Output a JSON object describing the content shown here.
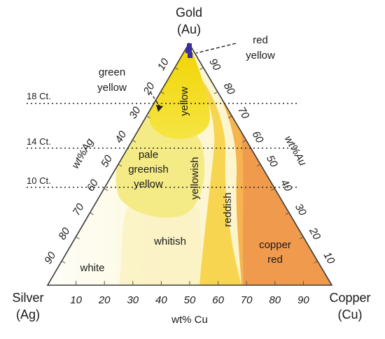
{
  "vertices": {
    "top": [
      "Gold",
      "(Au)"
    ],
    "left": [
      "Silver",
      "(Ag)"
    ],
    "right": [
      "Copper",
      "(Cu)"
    ]
  },
  "axes": {
    "ag_title": "wt%Ag",
    "au_title": "wt%Au",
    "cu_title": "wt% Cu",
    "ag_ticks": [
      10,
      20,
      30,
      40,
      50,
      60,
      70,
      80,
      90
    ],
    "au_ticks": [
      90,
      80,
      70,
      60,
      50,
      40,
      30,
      20,
      10
    ],
    "cu_ticks": [
      10,
      20,
      30,
      40,
      50,
      60,
      70,
      80,
      90
    ]
  },
  "carat_lines": [
    {
      "label": "18 Ct.",
      "gold_wt_pct": 75
    },
    {
      "label": "14 Ct.",
      "gold_wt_pct": 58.5
    },
    {
      "label": "10 Ct.",
      "gold_wt_pct": 41.7
    }
  ],
  "regions": {
    "white": "white",
    "whitish": "whitish",
    "pale_greenish_yellow": [
      "pale",
      "greenish",
      "yellow"
    ],
    "yellowish": "yellowish",
    "yellow": "yellow",
    "reddish": "reddish",
    "copper_red": [
      "copper",
      "red"
    ],
    "green_yellow": [
      "green",
      "yellow"
    ],
    "red_yellow": [
      "red",
      "yellow"
    ]
  },
  "colors": {
    "white": "#fdfcf3",
    "whitish": "#faf3b8",
    "pale_greenish_yellow": "#f5eb7e",
    "yellow": "#f2dc12",
    "yellowish": "#f8d24a",
    "reddish": "#f5b24c",
    "copper_red": "#f0954a",
    "marker": "#3a2ea0",
    "outline": "#3a3a3a"
  }
}
